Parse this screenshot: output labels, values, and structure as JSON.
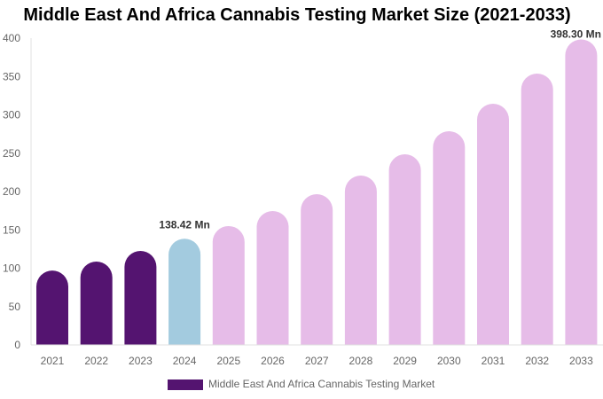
{
  "chart_data": {
    "type": "bar",
    "title": "Middle East And Africa Cannabis Testing Market Size (2021-2033)",
    "categories": [
      "2021",
      "2022",
      "2023",
      "2024",
      "2025",
      "2026",
      "2027",
      "2028",
      "2029",
      "2030",
      "2031",
      "2032",
      "2033"
    ],
    "series": [
      {
        "name": "Middle East And Africa Cannabis Testing Market",
        "values": [
          97,
          108.7,
          122.5,
          138.42,
          155,
          174.6,
          196.5,
          220.8,
          248.5,
          278.6,
          314.5,
          353.8,
          398.3
        ]
      }
    ],
    "data_labels": [
      {
        "category": "2024",
        "text": "138.42 Mn"
      },
      {
        "category": "2033",
        "text": "398.30 Mn"
      }
    ],
    "bar_colors": {
      "historical": "#541470",
      "current": "#a3cbdf",
      "forecast": "#e6bce8"
    },
    "ylim": [
      0,
      400
    ],
    "yticks": [
      0,
      50,
      100,
      150,
      200,
      250,
      300,
      350,
      400
    ],
    "xlabel": "",
    "ylabel": "",
    "grid": false,
    "legend": "bottom"
  }
}
